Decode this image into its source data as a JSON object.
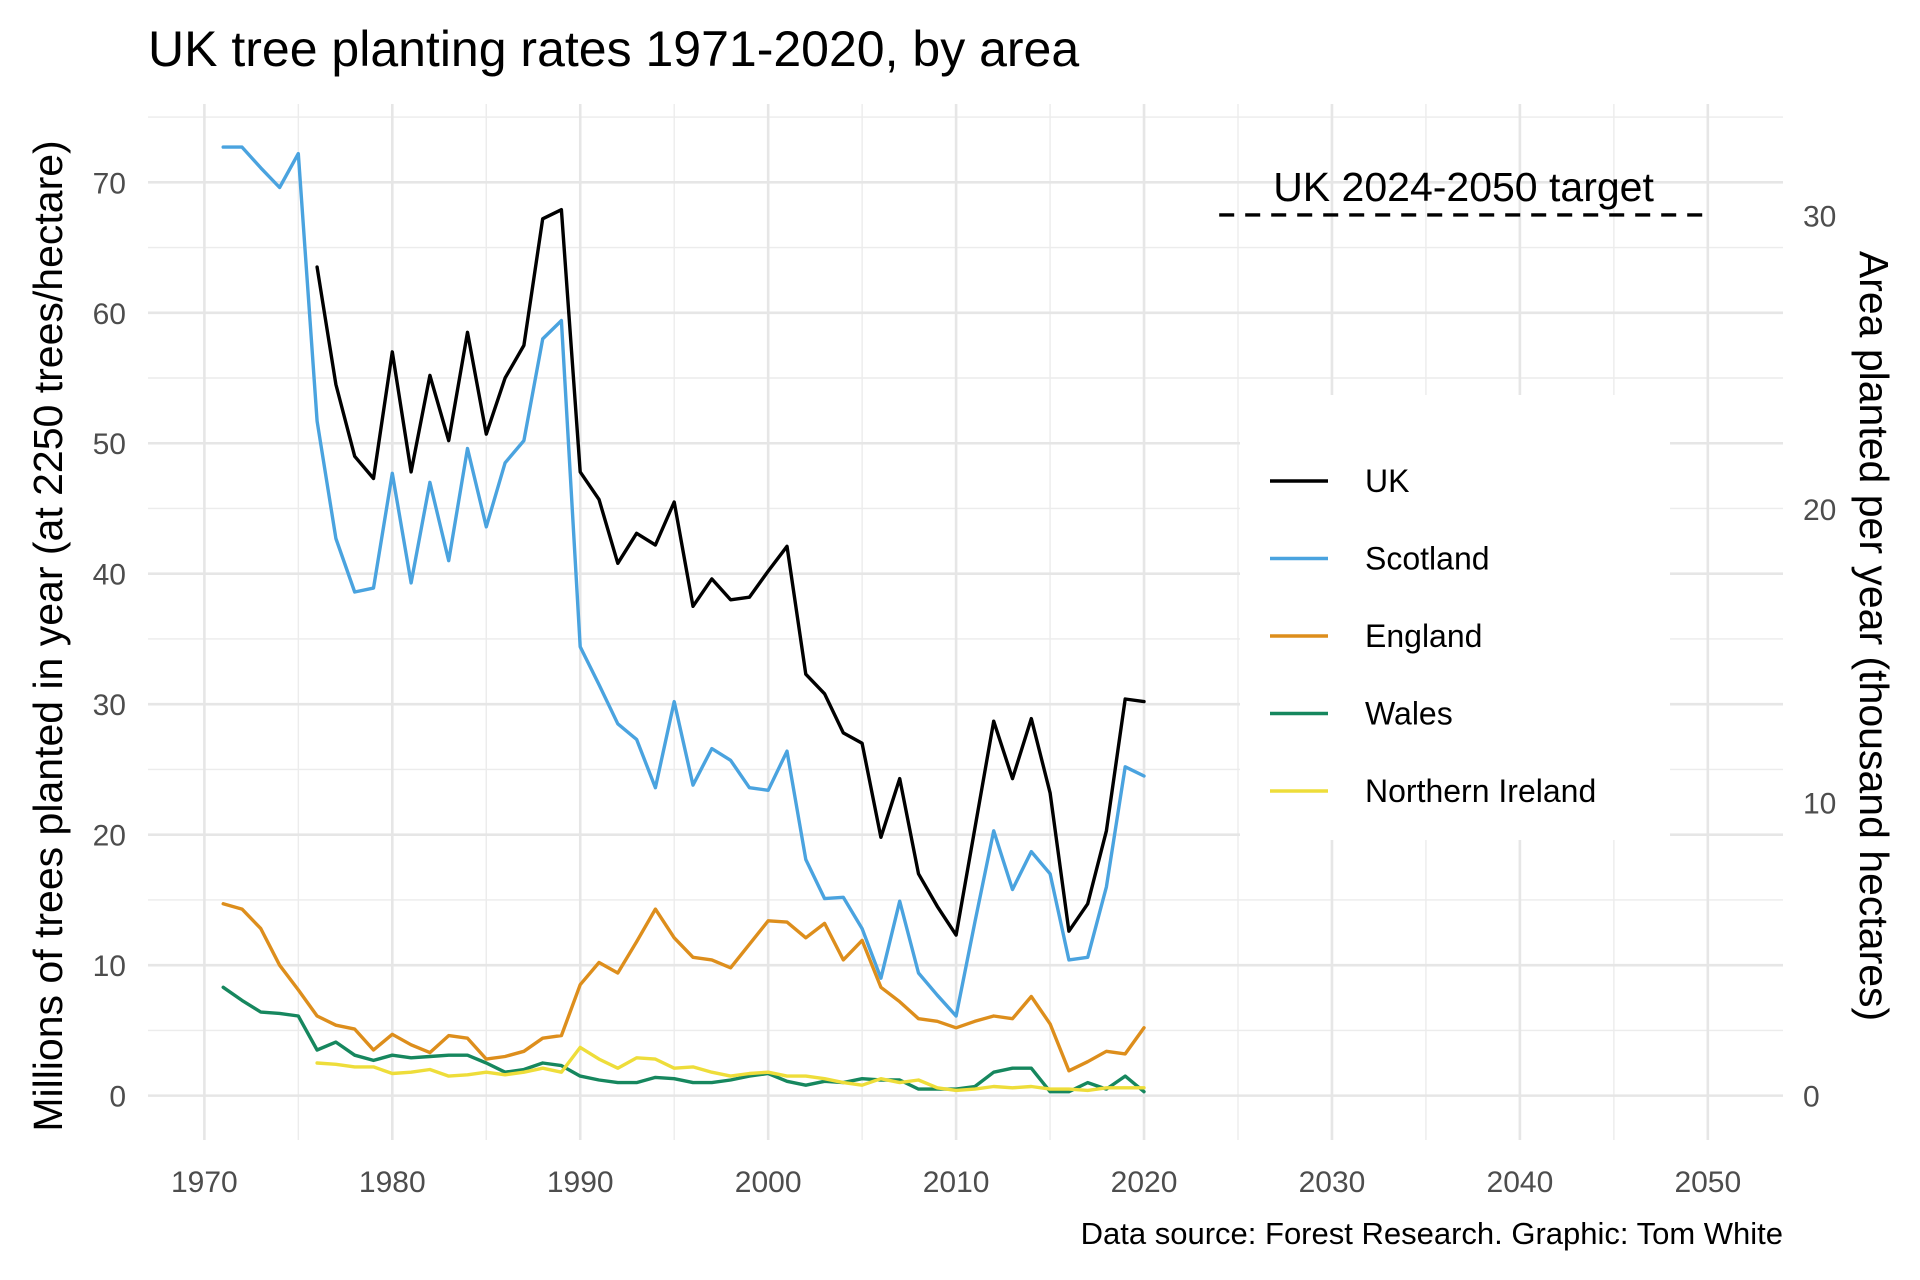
{
  "chart_data": {
    "type": "line",
    "title": "UK tree planting rates 1971-2020, by area",
    "ylabel": "Millions of trees planted in year (at 2250 trees/hectare)",
    "y2label": "Area planted per year (thousand hectares)",
    "caption": "Data source: Forest Research. Graphic: Tom White",
    "xlim": [
      1967,
      2054
    ],
    "ylim": [
      -3.4,
      76
    ],
    "y2lim": [
      -1.51,
      33.8
    ],
    "x_ticks": [
      1970,
      1980,
      1990,
      2000,
      2010,
      2020,
      2030,
      2040,
      2050
    ],
    "x_tick_labels": [
      "1970",
      "1980",
      "1990",
      "2000",
      "2010",
      "2020",
      "2030",
      "2040",
      "2050"
    ],
    "y_ticks": [
      0,
      10,
      20,
      30,
      40,
      50,
      60,
      70
    ],
    "y_tick_labels": [
      "0",
      "10",
      "20",
      "30",
      "40",
      "50",
      "60",
      "70"
    ],
    "y2_ticks": [
      0,
      10,
      20,
      30
    ],
    "y2_tick_labels": [
      "0",
      "10",
      "20",
      "30"
    ],
    "grid": true,
    "legend_position": "right",
    "target": {
      "label": "UK 2024-2050 target",
      "x_start": 2024,
      "x_end": 2050,
      "y": 67.5,
      "color": "#000000",
      "style": "dashed"
    },
    "series": [
      {
        "name": "UK",
        "color": "#000000",
        "x": [
          1976,
          1977,
          1978,
          1979,
          1980,
          1981,
          1982,
          1983,
          1984,
          1985,
          1986,
          1987,
          1988,
          1989,
          1990,
          1991,
          1992,
          1993,
          1994,
          1995,
          1996,
          1997,
          1998,
          1999,
          2000,
          2001,
          2002,
          2003,
          2004,
          2005,
          2006,
          2007,
          2008,
          2009,
          2010,
          2011,
          2012,
          2013,
          2014,
          2015,
          2016,
          2017,
          2018,
          2019,
          2020
        ],
        "values": [
          63.5,
          54.5,
          49,
          47.3,
          57,
          47.8,
          55.2,
          50.2,
          58.5,
          50.7,
          55,
          57.5,
          67.2,
          67.9,
          47.8,
          45.7,
          40.8,
          43.1,
          42.2,
          45.5,
          37.5,
          39.6,
          38,
          38.2,
          40.2,
          42.1,
          32.3,
          30.8,
          27.8,
          27,
          19.8,
          24.3,
          17,
          14.5,
          12.3,
          20.5,
          28.7,
          24.3,
          28.9,
          23.2,
          12.6,
          14.7,
          20.3,
          30.4,
          30.2
        ]
      },
      {
        "name": "Scotland",
        "color": "#4aa3df",
        "x": [
          1971,
          1972,
          1973,
          1974,
          1975,
          1976,
          1977,
          1978,
          1979,
          1980,
          1981,
          1982,
          1983,
          1984,
          1985,
          1986,
          1987,
          1988,
          1989,
          1990,
          1991,
          1992,
          1993,
          1994,
          1995,
          1996,
          1997,
          1998,
          1999,
          2000,
          2001,
          2002,
          2003,
          2004,
          2005,
          2006,
          2007,
          2008,
          2009,
          2010,
          2011,
          2012,
          2013,
          2014,
          2015,
          2016,
          2017,
          2018,
          2019,
          2020
        ],
        "values": [
          72.7,
          72.7,
          71.1,
          69.6,
          72.2,
          51.7,
          42.7,
          38.6,
          38.9,
          47.7,
          39.3,
          47,
          41,
          49.6,
          43.6,
          48.5,
          50.2,
          58,
          59.4,
          34.4,
          31.5,
          28.5,
          27.3,
          23.6,
          30.2,
          23.8,
          26.6,
          25.7,
          23.6,
          23.4,
          26.4,
          18.1,
          15.1,
          15.2,
          12.8,
          9,
          14.9,
          9.4,
          7.7,
          6.1,
          13.3,
          20.3,
          15.8,
          18.7,
          17,
          10.4,
          10.6,
          16,
          25.2,
          24.5
        ]
      },
      {
        "name": "England",
        "color": "#dd8e1c",
        "x": [
          1971,
          1972,
          1973,
          1974,
          1975,
          1976,
          1977,
          1978,
          1979,
          1980,
          1981,
          1982,
          1983,
          1984,
          1985,
          1986,
          1987,
          1988,
          1989,
          1990,
          1991,
          1992,
          1993,
          1994,
          1995,
          1996,
          1997,
          1998,
          1999,
          2000,
          2001,
          2002,
          2003,
          2004,
          2005,
          2006,
          2007,
          2008,
          2009,
          2010,
          2011,
          2012,
          2013,
          2014,
          2015,
          2016,
          2017,
          2018,
          2019,
          2020
        ],
        "values": [
          14.7,
          14.3,
          12.8,
          10,
          8.1,
          6.1,
          5.4,
          5.1,
          3.5,
          4.7,
          3.9,
          3.3,
          4.6,
          4.4,
          2.8,
          3,
          3.4,
          4.4,
          4.6,
          8.5,
          10.2,
          9.4,
          11.8,
          14.3,
          12.1,
          10.6,
          10.4,
          9.8,
          11.6,
          13.4,
          13.3,
          12.1,
          13.2,
          10.4,
          11.9,
          8.3,
          7.2,
          5.9,
          5.7,
          5.2,
          5.7,
          6.1,
          5.9,
          7.6,
          5.5,
          1.9,
          2.6,
          3.4,
          3.2,
          5.2
        ]
      },
      {
        "name": "Wales",
        "color": "#16875e",
        "x": [
          1971,
          1972,
          1973,
          1974,
          1975,
          1976,
          1977,
          1978,
          1979,
          1980,
          1981,
          1982,
          1983,
          1984,
          1985,
          1986,
          1987,
          1988,
          1989,
          1990,
          1991,
          1992,
          1993,
          1994,
          1995,
          1996,
          1997,
          1998,
          1999,
          2000,
          2001,
          2002,
          2003,
          2004,
          2005,
          2006,
          2007,
          2008,
          2009,
          2010,
          2011,
          2012,
          2013,
          2014,
          2015,
          2016,
          2017,
          2018,
          2019,
          2020
        ],
        "values": [
          8.3,
          7.3,
          6.4,
          6.3,
          6.1,
          3.5,
          4.1,
          3.1,
          2.7,
          3.1,
          2.9,
          3,
          3.1,
          3.1,
          2.5,
          1.8,
          2,
          2.5,
          2.3,
          1.5,
          1.2,
          1,
          1,
          1.4,
          1.3,
          1,
          1,
          1.2,
          1.5,
          1.7,
          1.1,
          0.8,
          1.1,
          1,
          1.3,
          1.2,
          1.2,
          0.5,
          0.5,
          0.5,
          0.7,
          1.8,
          2.1,
          2.1,
          0.3,
          0.3,
          1,
          0.5,
          1.5,
          0.3
        ]
      },
      {
        "name": "Northern Ireland",
        "color": "#eedd3a",
        "x": [
          1976,
          1977,
          1978,
          1979,
          1980,
          1981,
          1982,
          1983,
          1984,
          1985,
          1986,
          1987,
          1988,
          1989,
          1990,
          1991,
          1992,
          1993,
          1994,
          1995,
          1996,
          1997,
          1998,
          1999,
          2000,
          2001,
          2002,
          2003,
          2004,
          2005,
          2006,
          2007,
          2008,
          2009,
          2010,
          2011,
          2012,
          2013,
          2014,
          2015,
          2016,
          2017,
          2018,
          2019,
          2020
        ],
        "values": [
          2.5,
          2.4,
          2.2,
          2.2,
          1.7,
          1.8,
          2,
          1.5,
          1.6,
          1.8,
          1.6,
          1.8,
          2.1,
          1.8,
          3.7,
          2.8,
          2.1,
          2.9,
          2.8,
          2.1,
          2.2,
          1.8,
          1.5,
          1.7,
          1.8,
          1.5,
          1.5,
          1.3,
          1,
          0.8,
          1.3,
          1,
          1.2,
          0.6,
          0.4,
          0.5,
          0.7,
          0.6,
          0.7,
          0.5,
          0.5,
          0.4,
          0.6,
          0.6,
          0.6
        ]
      }
    ]
  }
}
